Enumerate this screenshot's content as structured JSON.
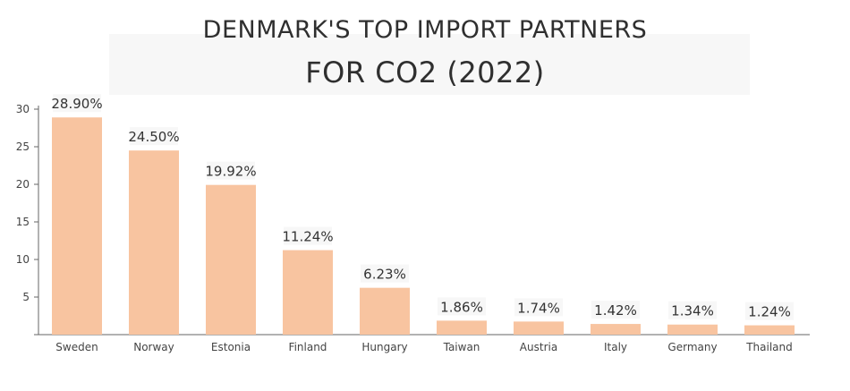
{
  "chart_data": {
    "type": "bar",
    "title_line1": "DENMARK'S TOP IMPORT PARTNERS",
    "title_line2": "FOR CO2 (2022)",
    "categories": [
      "Sweden",
      "Norway",
      "Estonia",
      "Finland",
      "Hungary",
      "Taiwan",
      "Austria",
      "Italy",
      "Germany",
      "Thailand"
    ],
    "values": [
      28.9,
      24.5,
      19.92,
      11.24,
      6.23,
      1.86,
      1.74,
      1.42,
      1.34,
      1.24
    ],
    "data_labels": [
      "28.90%",
      "24.50%",
      "19.92%",
      "11.24%",
      "6.23%",
      "1.86%",
      "1.74%",
      "1.42%",
      "1.34%",
      "1.24%"
    ],
    "yticks": [
      "5",
      "10",
      "15",
      "20",
      "25",
      "30"
    ],
    "ylim": [
      0,
      30
    ],
    "xlabel": "",
    "ylabel": "",
    "grid": false,
    "bar_color": "#f8c4a0"
  }
}
